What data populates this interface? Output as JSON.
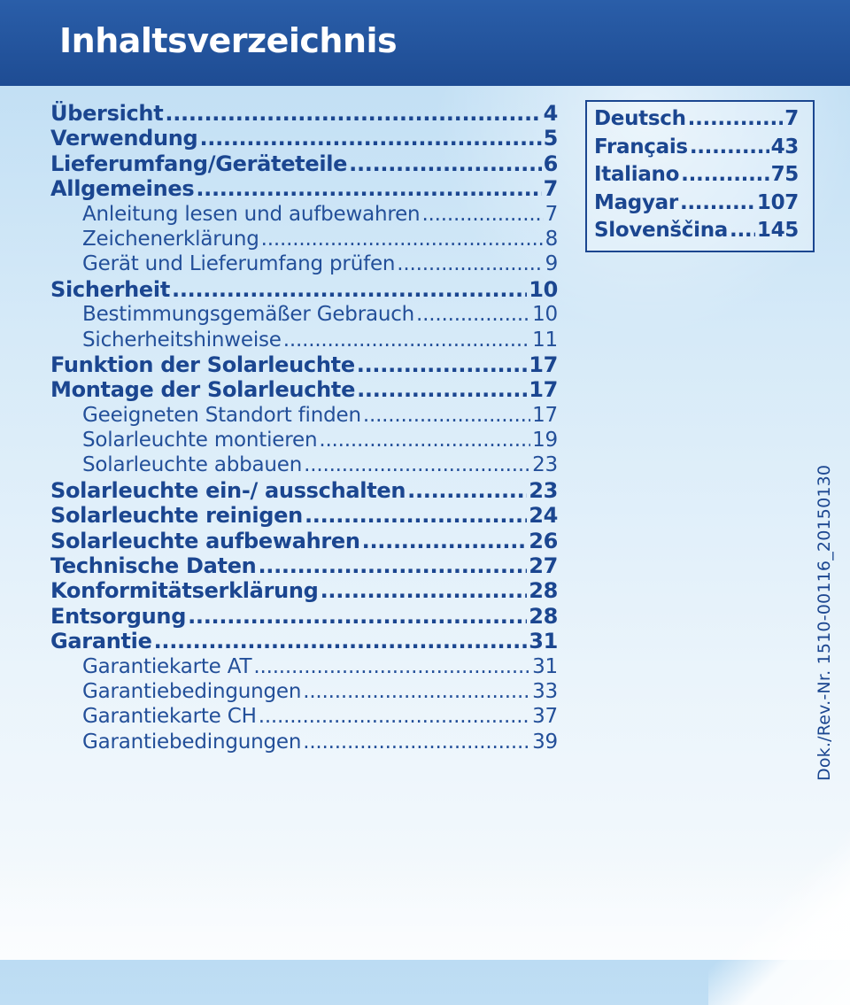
{
  "header": {
    "title": "Inhaltsverzeichnis"
  },
  "toc": [
    {
      "level": 1,
      "title": "Übersicht",
      "page": "4"
    },
    {
      "level": 1,
      "title": "Verwendung",
      "page": "5"
    },
    {
      "level": 1,
      "title": "Lieferumfang/Geräteteile",
      "page": "6"
    },
    {
      "level": 1,
      "title": "Allgemeines",
      "page": "7"
    },
    {
      "level": 2,
      "title": "Anleitung lesen und aufbewahren",
      "page": "7"
    },
    {
      "level": 2,
      "title": "Zeichenerklärung",
      "page": "8"
    },
    {
      "level": 2,
      "title": "Gerät und Lieferumfang prüfen",
      "page": "9"
    },
    {
      "level": 1,
      "title": "Sicherheit",
      "page": "10"
    },
    {
      "level": 2,
      "title": "Bestimmungsgemäßer Gebrauch",
      "page": "10"
    },
    {
      "level": 2,
      "title": "Sicherheitshinweise",
      "page": "11"
    },
    {
      "level": 1,
      "title": "Funktion der Solarleuchte",
      "page": "17"
    },
    {
      "level": 1,
      "title": "Montage der Solarleuchte",
      "page": "17"
    },
    {
      "level": 2,
      "title": "Geeigneten Standort finden",
      "page": "17"
    },
    {
      "level": 2,
      "title": "Solarleuchte montieren",
      "page": "19"
    },
    {
      "level": 2,
      "title": "Solarleuchte abbauen",
      "page": "23"
    },
    {
      "level": 1,
      "title": "Solarleuchte ein-/ ausschalten",
      "page": "23"
    },
    {
      "level": 1,
      "title": "Solarleuchte reinigen",
      "page": "24"
    },
    {
      "level": 1,
      "title": "Solarleuchte aufbewahren",
      "page": "26"
    },
    {
      "level": 1,
      "title": "Technische Daten",
      "page": "27"
    },
    {
      "level": 1,
      "title": "Konformitätserklärung",
      "page": "28"
    },
    {
      "level": 1,
      "title": "Entsorgung",
      "page": "28"
    },
    {
      "level": 1,
      "title": "Garantie",
      "page": "31"
    },
    {
      "level": 2,
      "title": "Garantiekarte AT",
      "page": "31"
    },
    {
      "level": 2,
      "title": "Garantiebedingungen",
      "page": "33"
    },
    {
      "level": 2,
      "title": "Garantiekarte CH",
      "page": "37"
    },
    {
      "level": 2,
      "title": "Garantiebedingungen",
      "page": "39"
    }
  ],
  "languages": [
    {
      "name": "Deutsch",
      "page": "7"
    },
    {
      "name": "Français",
      "page": "43"
    },
    {
      "name": "Italiano",
      "page": "75"
    },
    {
      "name": "Magyar",
      "page": "107"
    },
    {
      "name": "Slovenščina",
      "page": "145"
    }
  ],
  "doc_number": "Dok./Rev.-Nr. 1510-00116_20150130",
  "colors": {
    "header_bg": "#1e4c93",
    "text": "#1b4690",
    "background": "#d6eaf8"
  }
}
